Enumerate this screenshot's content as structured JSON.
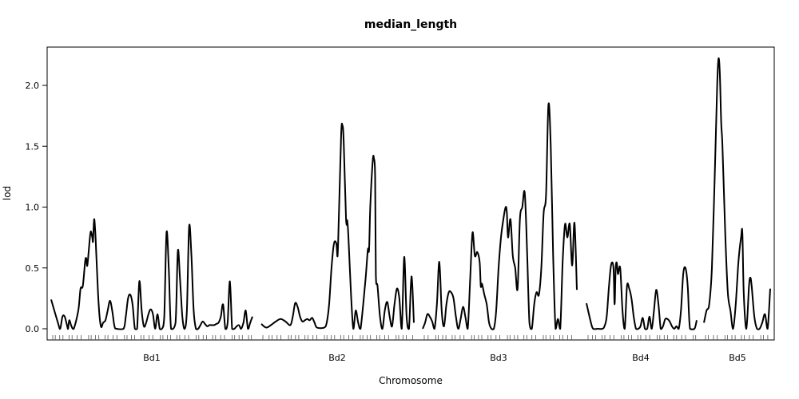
{
  "chart_data": {
    "type": "line",
    "title": "median_length",
    "xlabel": "Chromosome",
    "ylabel": "lod",
    "ylim": [
      0,
      2.3
    ],
    "yticks": [
      "0.0",
      "0.5",
      "1.0",
      "1.5",
      "2.0"
    ],
    "ytick_values": [
      0,
      0.5,
      1.0,
      1.5,
      2.0
    ],
    "grid": false,
    "series_color": "#000000",
    "chromosomes": [
      {
        "name": "Bd1",
        "profile": [
          [
            0,
            0.24
          ],
          [
            3,
            0.05
          ],
          [
            4,
            0.0
          ],
          [
            5,
            0.1
          ],
          [
            6,
            0.1
          ],
          [
            7,
            0.03
          ],
          [
            7.5,
            0.0
          ],
          [
            8,
            0.07
          ],
          [
            9,
            0.02
          ],
          [
            10,
            0.0
          ],
          [
            12,
            0.15
          ],
          [
            13,
            0.33
          ],
          [
            14,
            0.35
          ],
          [
            15,
            0.55
          ],
          [
            15.5,
            0.58
          ],
          [
            16,
            0.52
          ],
          [
            17,
            0.72
          ],
          [
            17.5,
            0.8
          ],
          [
            18.2,
            0.75
          ],
          [
            18.5,
            0.72
          ],
          [
            19,
            0.9
          ],
          [
            19.5,
            0.8
          ],
          [
            20,
            0.6
          ],
          [
            21,
            0.2
          ],
          [
            22,
            0.02
          ],
          [
            23,
            0.05
          ],
          [
            24,
            0.07
          ],
          [
            25,
            0.15
          ],
          [
            26,
            0.23
          ],
          [
            27,
            0.15
          ],
          [
            28,
            0.02
          ],
          [
            29,
            0.0
          ],
          [
            32,
            0.0
          ],
          [
            33,
            0.1
          ],
          [
            34,
            0.25
          ],
          [
            35,
            0.28
          ],
          [
            36,
            0.2
          ],
          [
            37,
            0.0
          ],
          [
            38,
            0.0
          ],
          [
            39,
            0.39
          ],
          [
            40,
            0.15
          ],
          [
            41,
            0.02
          ],
          [
            42,
            0.05
          ],
          [
            43,
            0.12
          ],
          [
            44,
            0.16
          ],
          [
            45,
            0.12
          ],
          [
            46,
            0.0
          ],
          [
            47,
            0.12
          ],
          [
            48,
            0.0
          ],
          [
            49,
            0.0
          ],
          [
            50,
            0.1
          ],
          [
            51,
            0.79
          ],
          [
            52,
            0.5
          ],
          [
            53,
            0.0
          ],
          [
            55,
            0.05
          ],
          [
            56,
            0.64
          ],
          [
            57,
            0.4
          ],
          [
            58,
            0.1
          ],
          [
            59,
            0.0
          ],
          [
            60,
            0.15
          ],
          [
            61,
            0.84
          ],
          [
            62,
            0.6
          ],
          [
            63,
            0.15
          ],
          [
            64,
            0.0
          ],
          [
            65,
            0.0
          ],
          [
            66,
            0.03
          ],
          [
            67,
            0.06
          ],
          [
            68,
            0.04
          ],
          [
            69,
            0.02
          ],
          [
            70,
            0.03
          ],
          [
            72,
            0.03
          ],
          [
            73,
            0.04
          ],
          [
            74,
            0.05
          ],
          [
            75,
            0.1
          ],
          [
            76,
            0.2
          ],
          [
            77,
            0.0
          ],
          [
            78,
            0.05
          ],
          [
            79,
            0.39
          ],
          [
            80,
            0.0
          ],
          [
            81,
            0.0
          ],
          [
            82,
            0.02
          ],
          [
            83,
            0.03
          ],
          [
            84,
            0.0
          ],
          [
            85,
            0.05
          ],
          [
            86,
            0.15
          ],
          [
            87,
            0.0
          ],
          [
            88,
            0.05
          ],
          [
            89,
            0.1
          ]
        ]
      },
      {
        "name": "Bd2",
        "profile": [
          [
            0,
            0.04
          ],
          [
            2,
            0.01
          ],
          [
            4,
            0.03
          ],
          [
            6,
            0.06
          ],
          [
            8,
            0.08
          ],
          [
            10,
            0.06
          ],
          [
            12,
            0.03
          ],
          [
            13,
            0.1
          ],
          [
            14,
            0.21
          ],
          [
            15,
            0.18
          ],
          [
            16,
            0.1
          ],
          [
            17,
            0.06
          ],
          [
            18,
            0.07
          ],
          [
            19,
            0.08
          ],
          [
            20,
            0.07
          ],
          [
            21,
            0.09
          ],
          [
            22,
            0.05
          ],
          [
            23,
            0.01
          ],
          [
            26,
            0.01
          ],
          [
            27,
            0.05
          ],
          [
            28,
            0.2
          ],
          [
            29,
            0.5
          ],
          [
            30,
            0.7
          ],
          [
            31,
            0.7
          ],
          [
            31.5,
            0.6
          ],
          [
            32,
            0.9
          ],
          [
            33,
            1.6
          ],
          [
            33.5,
            1.67
          ],
          [
            34,
            1.55
          ],
          [
            35,
            0.9
          ],
          [
            35.5,
            0.89
          ],
          [
            36,
            0.75
          ],
          [
            37,
            0.3
          ],
          [
            38,
            0.0
          ],
          [
            39,
            0.15
          ],
          [
            40,
            0.05
          ],
          [
            41,
            0.0
          ],
          [
            43,
            0.4
          ],
          [
            44,
            0.65
          ],
          [
            44.5,
            0.65
          ],
          [
            45,
            1.0
          ],
          [
            46,
            1.38
          ],
          [
            46.5,
            1.4
          ],
          [
            47,
            1.25
          ],
          [
            47.3,
            0.45
          ],
          [
            48,
            0.35
          ],
          [
            49,
            0.1
          ],
          [
            50,
            0.0
          ],
          [
            51,
            0.15
          ],
          [
            52,
            0.22
          ],
          [
            53,
            0.1
          ],
          [
            54,
            0.02
          ],
          [
            55,
            0.2
          ],
          [
            56,
            0.33
          ],
          [
            57,
            0.25
          ],
          [
            58,
            0.0
          ],
          [
            59,
            0.59
          ],
          [
            60,
            0.1
          ],
          [
            61,
            0.0
          ],
          [
            62,
            0.43
          ],
          [
            63,
            0.05
          ]
        ]
      },
      {
        "name": "Bd3",
        "profile": [
          [
            0,
            0.0
          ],
          [
            1,
            0.05
          ],
          [
            2,
            0.12
          ],
          [
            3,
            0.1
          ],
          [
            4,
            0.06
          ],
          [
            5,
            0.0
          ],
          [
            6,
            0.2
          ],
          [
            7,
            0.55
          ],
          [
            8,
            0.15
          ],
          [
            9,
            0.02
          ],
          [
            10,
            0.2
          ],
          [
            11,
            0.3
          ],
          [
            12,
            0.3
          ],
          [
            13,
            0.25
          ],
          [
            14,
            0.1
          ],
          [
            15,
            0.0
          ],
          [
            16,
            0.08
          ],
          [
            17,
            0.18
          ],
          [
            18,
            0.1
          ],
          [
            19,
            0.0
          ],
          [
            20,
            0.4
          ],
          [
            21,
            0.79
          ],
          [
            22,
            0.6
          ],
          [
            23,
            0.63
          ],
          [
            24,
            0.55
          ],
          [
            24.5,
            0.35
          ],
          [
            25,
            0.37
          ],
          [
            26,
            0.28
          ],
          [
            27,
            0.2
          ],
          [
            28,
            0.05
          ],
          [
            29,
            0.0
          ],
          [
            30,
            0.0
          ],
          [
            31,
            0.15
          ],
          [
            32,
            0.5
          ],
          [
            33,
            0.75
          ],
          [
            34,
            0.9
          ],
          [
            35,
            1.0
          ],
          [
            35.5,
            0.95
          ],
          [
            36,
            0.75
          ],
          [
            37,
            0.9
          ],
          [
            38,
            0.6
          ],
          [
            39,
            0.5
          ],
          [
            40,
            0.33
          ],
          [
            41,
            0.9
          ],
          [
            42,
            1.0
          ],
          [
            43,
            1.12
          ],
          [
            44,
            0.65
          ],
          [
            45,
            0.05
          ],
          [
            46,
            0.0
          ],
          [
            47,
            0.2
          ],
          [
            48,
            0.3
          ],
          [
            49,
            0.28
          ],
          [
            50,
            0.5
          ],
          [
            51,
            0.95
          ],
          [
            52,
            1.1
          ],
          [
            53,
            1.84
          ],
          [
            54,
            1.5
          ],
          [
            55,
            0.6
          ],
          [
            56,
            0.0
          ],
          [
            57,
            0.08
          ],
          [
            58,
            0.0
          ],
          [
            59,
            0.55
          ],
          [
            60,
            0.86
          ],
          [
            61,
            0.75
          ],
          [
            62,
            0.86
          ],
          [
            63,
            0.52
          ],
          [
            64,
            0.87
          ],
          [
            65,
            0.32
          ]
        ]
      },
      {
        "name": "Bd4",
        "profile": [
          [
            0,
            0.21
          ],
          [
            2,
            0.05
          ],
          [
            3,
            0.0
          ],
          [
            5,
            0.0
          ],
          [
            7,
            0.0
          ],
          [
            8,
            0.02
          ],
          [
            9,
            0.1
          ],
          [
            10,
            0.35
          ],
          [
            11,
            0.53
          ],
          [
            12,
            0.5
          ],
          [
            12.5,
            0.2
          ],
          [
            13,
            0.5
          ],
          [
            13.5,
            0.54
          ],
          [
            14,
            0.45
          ],
          [
            15,
            0.5
          ],
          [
            16,
            0.15
          ],
          [
            17,
            0.0
          ],
          [
            18,
            0.35
          ],
          [
            19,
            0.33
          ],
          [
            20,
            0.25
          ],
          [
            21,
            0.1
          ],
          [
            22,
            0.0
          ],
          [
            23,
            0.0
          ],
          [
            24,
            0.02
          ],
          [
            25,
            0.09
          ],
          [
            26,
            0.0
          ],
          [
            27,
            0.0
          ],
          [
            28,
            0.1
          ],
          [
            29,
            0.0
          ],
          [
            30,
            0.15
          ],
          [
            31,
            0.32
          ],
          [
            32,
            0.2
          ],
          [
            33,
            0.0
          ],
          [
            34,
            0.02
          ],
          [
            35,
            0.08
          ],
          [
            36,
            0.08
          ],
          [
            37,
            0.06
          ],
          [
            38,
            0.02
          ],
          [
            39,
            0.0
          ],
          [
            40,
            0.02
          ],
          [
            41,
            0.0
          ],
          [
            42,
            0.15
          ],
          [
            43,
            0.45
          ],
          [
            44,
            0.5
          ],
          [
            45,
            0.35
          ],
          [
            46,
            0.0
          ],
          [
            48,
            0.0
          ],
          [
            49,
            0.07
          ]
        ]
      },
      {
        "name": "Bd5",
        "profile": [
          [
            0,
            0.05
          ],
          [
            1,
            0.15
          ],
          [
            2,
            0.2
          ],
          [
            3,
            0.5
          ],
          [
            4,
            1.2
          ],
          [
            5,
            2.0
          ],
          [
            5.5,
            2.22
          ],
          [
            6,
            2.1
          ],
          [
            6.5,
            1.7
          ],
          [
            7,
            1.5
          ],
          [
            8,
            0.8
          ],
          [
            9,
            0.3
          ],
          [
            10,
            0.15
          ],
          [
            11,
            0.0
          ],
          [
            12,
            0.2
          ],
          [
            13,
            0.55
          ],
          [
            14,
            0.75
          ],
          [
            14.5,
            0.79
          ],
          [
            15,
            0.3
          ],
          [
            16,
            0.0
          ],
          [
            17,
            0.35
          ],
          [
            17.5,
            0.42
          ],
          [
            18,
            0.35
          ],
          [
            19,
            0.1
          ],
          [
            20,
            0.0
          ],
          [
            21,
            0.0
          ],
          [
            22,
            0.05
          ],
          [
            23,
            0.12
          ],
          [
            24,
            0.0
          ],
          [
            25,
            0.33
          ]
        ]
      }
    ]
  }
}
